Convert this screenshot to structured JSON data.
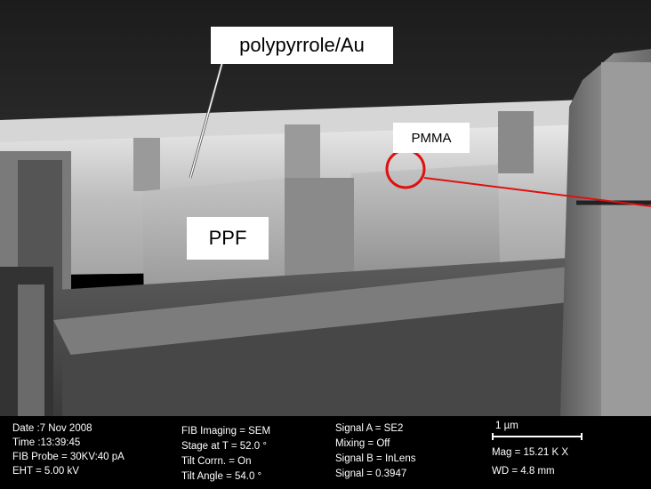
{
  "labels": {
    "polypyrrole": "polypyrrole/Au",
    "pmma": "PMMA",
    "ppf": "PPF"
  },
  "colors": {
    "annotation_line": "#e01010",
    "annotation_circle": "#e01010"
  },
  "info": {
    "date": "Date :7 Nov 2008",
    "time": "Time :13:39:45",
    "fib_probe": "FIB Probe = 30KV:40 pA",
    "eht": "EHT = 5.00 kV",
    "fib_imaging": "FIB Imaging = SEM",
    "stage": "Stage at T = 52.0 °",
    "tilt_corrn": "Tilt Corrn. = On",
    "tilt_angle": "Tilt Angle = 54.0 °",
    "signal_a": "Signal A = SE2",
    "mixing": "Mixing = Off",
    "signal_b": "Signal B = InLens",
    "signal": "Signal = 0.3947",
    "scale": "1 µm",
    "mag": "Mag = 15.21 K X",
    "wd": "WD = 4.8 mm"
  }
}
